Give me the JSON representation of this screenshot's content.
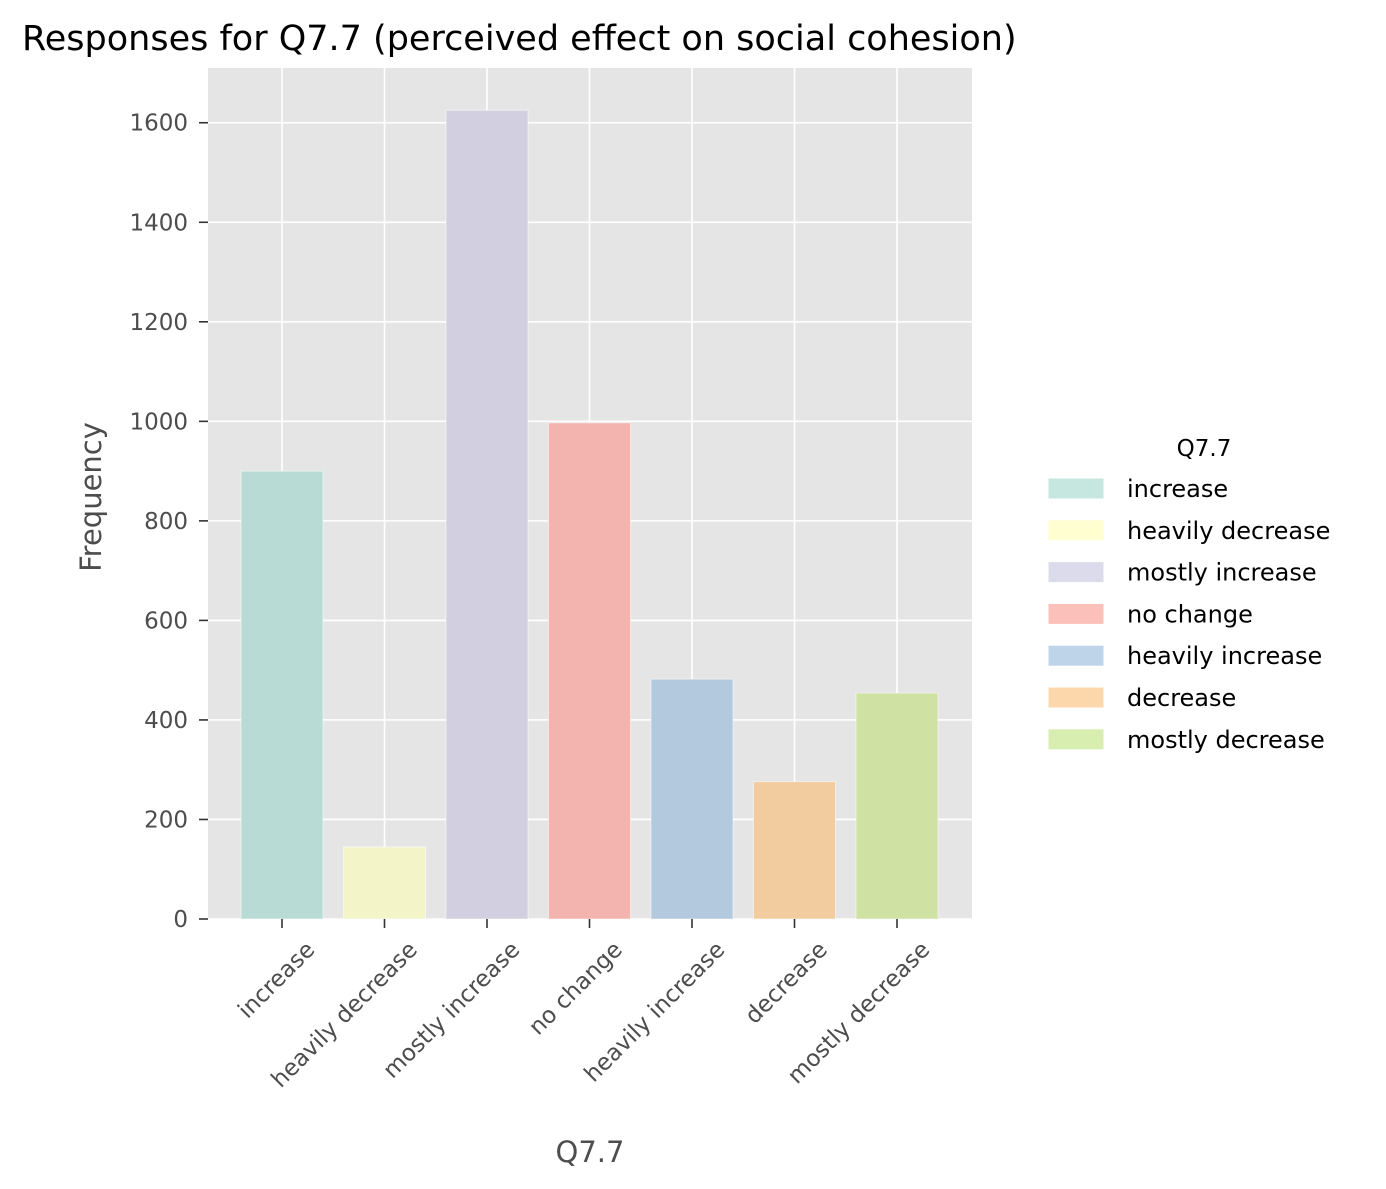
{
  "chart_data": {
    "type": "bar",
    "title": "Responses for Q7.7 (perceived effect on social cohesion)",
    "xlabel": "Q7.7",
    "ylabel": "Frequency",
    "categories": [
      "increase",
      "heavily decrease",
      "mostly increase",
      "no change",
      "heavily increase",
      "decrease",
      "mostly decrease"
    ],
    "values": [
      900,
      145,
      1625,
      997,
      482,
      276,
      454
    ],
    "colors": [
      "#b8dcd5",
      "#f4f4c9",
      "#d2cfe0",
      "#f3b3ae",
      "#b3c9dd",
      "#f2cc9f",
      "#cfe2a3"
    ],
    "ylim": [
      0,
      1710
    ],
    "yticks": [
      0,
      200,
      400,
      600,
      800,
      1000,
      1200,
      1400,
      1600
    ],
    "grid": true,
    "legend": {
      "title": "Q7.7",
      "placement": "right",
      "entries": [
        "increase",
        "heavily decrease",
        "mostly increase",
        "no change",
        "heavily increase",
        "decrease",
        "mostly decrease"
      ],
      "colors": [
        "#c6e7df",
        "#fefed0",
        "#dcdbeb",
        "#fcc0bb",
        "#bed4e8",
        "#fcd7ab",
        "#d8eeb0"
      ]
    },
    "panel_background": "#e5e5e5",
    "grid_color": "#ffffff"
  }
}
